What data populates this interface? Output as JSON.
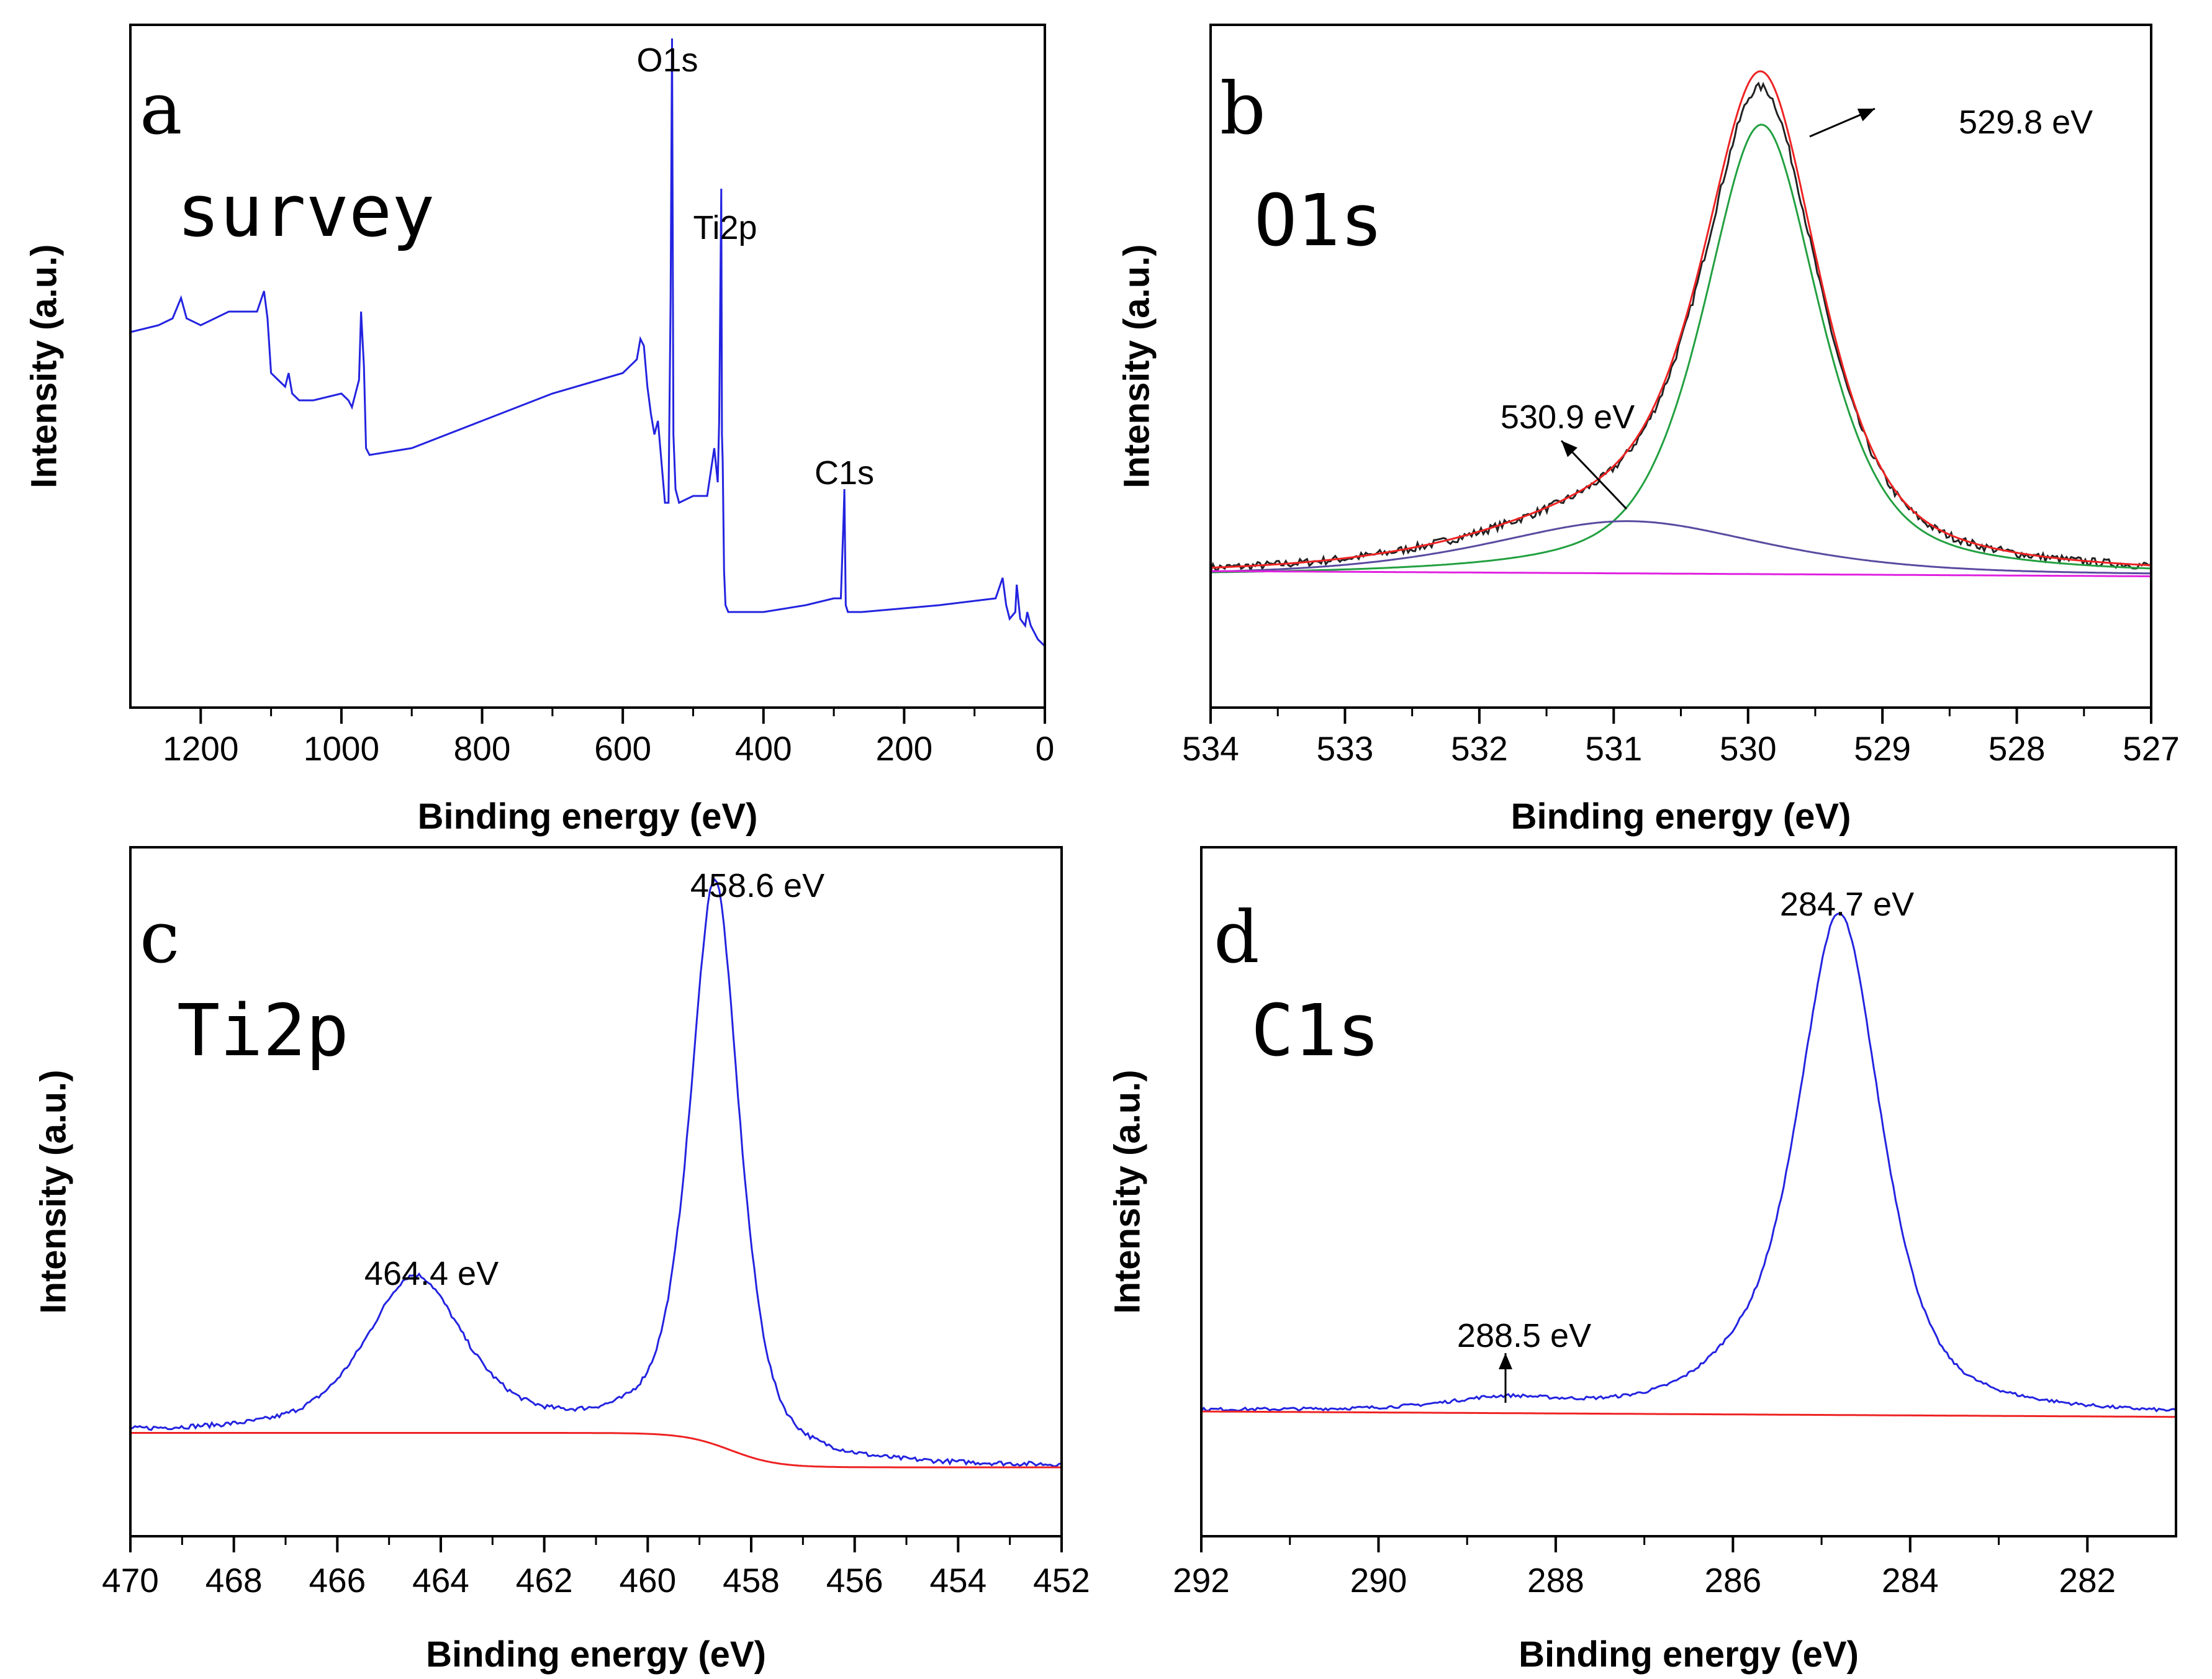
{
  "chart_data": [
    {
      "type": "line",
      "panel_label": "a",
      "panel_title": "survey",
      "xlabel": "Binding energy (eV)",
      "ylabel": "Intensity (a.u.)",
      "xlim": [
        1300,
        0
      ],
      "ylim": [
        0,
        100
      ],
      "xticks": [
        1200,
        1000,
        800,
        600,
        400,
        200,
        0
      ],
      "annotations": [
        {
          "text": "O1s",
          "x": 530,
          "y": 98
        },
        {
          "text": "Ti2p",
          "x": 458,
          "y": 74
        },
        {
          "text": "C1s",
          "x": 285,
          "y": 35
        }
      ],
      "series": [
        {
          "name": "survey",
          "color": "#2323e0",
          "x": [
            1300,
            1260,
            1240,
            1228,
            1220,
            1200,
            1160,
            1140,
            1120,
            1110,
            1105,
            1100,
            1090,
            1080,
            1075,
            1070,
            1060,
            1040,
            1000,
            990,
            985,
            975,
            972,
            968,
            965,
            960,
            900,
            800,
            700,
            600,
            580,
            575,
            570,
            565,
            560,
            555,
            550,
            540,
            535,
            532,
            530,
            528,
            525,
            520,
            500,
            480,
            470,
            465,
            463,
            460,
            459,
            458,
            456,
            454,
            450,
            420,
            400,
            340,
            300,
            290,
            286,
            285,
            283,
            280,
            260,
            150,
            70,
            60,
            55,
            50,
            42,
            40,
            35,
            28,
            25,
            20,
            10,
            0
          ],
          "y": [
            55,
            56,
            57,
            60,
            57,
            56,
            58,
            58,
            58,
            61,
            57,
            49,
            48,
            47,
            49,
            46,
            45,
            45,
            46,
            45,
            44,
            48,
            58,
            50,
            38,
            37,
            38,
            42,
            46,
            49,
            51,
            54,
            53,
            47,
            43,
            40,
            42,
            30,
            30,
            60,
            98,
            40,
            32,
            30,
            31,
            31,
            38,
            33,
            42,
            76,
            40,
            36,
            20,
            15,
            14,
            14,
            14,
            15,
            16,
            16,
            28,
            32,
            15,
            14,
            14,
            15,
            16,
            19,
            15,
            13,
            14,
            18,
            13,
            12,
            14,
            12,
            10,
            9
          ]
        }
      ]
    },
    {
      "type": "line",
      "panel_label": "b",
      "panel_title": "O1s",
      "xlabel": "Binding energy (eV)",
      "ylabel": "Intensity (a.u.)",
      "xlim": [
        534,
        527
      ],
      "ylim": [
        -0.25,
        1.05
      ],
      "xticks": [
        534,
        533,
        532,
        531,
        530,
        529,
        528,
        527
      ],
      "annotations": [
        {
          "text": "529.8 eV",
          "x": 529.3,
          "y": 0.98
        },
        {
          "text": "530.9 eV",
          "x": 531.4,
          "y": 0.38
        }
      ],
      "series": [
        {
          "name": "raw",
          "color": "#222222",
          "peaks": [
            {
              "center": 529.9,
              "height": 0.87,
              "width": 0.5
            },
            {
              "center": 530.9,
              "height": 0.1,
              "width": 1.2
            }
          ],
          "noise": 0.008
        },
        {
          "name": "envelope",
          "color": "#ee2222",
          "peaks": [
            {
              "center": 529.9,
              "height": 0.9,
              "width": 0.5
            },
            {
              "center": 530.9,
              "height": 0.1,
              "width": 1.2
            }
          ]
        },
        {
          "name": "529.8 eV component",
          "color": "#22a040",
          "peaks": [
            {
              "center": 529.9,
              "height": 0.86,
              "width": 0.5
            }
          ]
        },
        {
          "name": "530.9 eV component",
          "color": "#5a4aa0",
          "peaks": [
            {
              "center": 530.9,
              "height": 0.105,
              "width": 1.2
            }
          ]
        },
        {
          "name": "background",
          "color": "#e020e0",
          "background": {
            "from": 0.01,
            "to": 0.0
          }
        }
      ]
    },
    {
      "type": "line",
      "panel_label": "c",
      "panel_title": "Ti2p",
      "xlabel": "Binding energy (eV)",
      "ylabel": "Intensity (a.u.)",
      "xlim": [
        470,
        452
      ],
      "ylim": [
        -0.12,
        1.08
      ],
      "xticks": [
        470,
        468,
        466,
        464,
        462,
        460,
        458,
        456,
        454,
        452
      ],
      "annotations": [
        {
          "text": "464.4 eV",
          "x": 464.4,
          "y": 0.26
        },
        {
          "text": "458.6 eV",
          "x": 458.6,
          "y": 1.0
        }
      ],
      "series": [
        {
          "name": "spectrum",
          "color": "#2323e0",
          "peaks": [
            {
              "center": 458.7,
              "height": 0.98,
              "width": 0.55
            },
            {
              "center": 464.5,
              "height": 0.27,
              "width": 1.1
            }
          ],
          "background": {
            "from": 0.06,
            "to": 0.0,
            "step_center": 458.4
          },
          "noise": 0.004
        },
        {
          "name": "background",
          "color": "#ee2222",
          "background": {
            "from": 0.06,
            "to": 0.0,
            "step_center": 458.4
          }
        }
      ]
    },
    {
      "type": "line",
      "panel_label": "d",
      "panel_title": "C1s",
      "xlabel": "Binding energy (eV)",
      "ylabel": "Intensity (a.u.)",
      "xlim": [
        292,
        281
      ],
      "ylim": [
        -0.22,
        1.05
      ],
      "xticks": [
        292,
        290,
        288,
        286,
        284,
        282
      ],
      "annotations": [
        {
          "text": "284.7 eV",
          "x": 284.7,
          "y": 0.98
        },
        {
          "text": "288.5 eV",
          "x": 288.5,
          "y": 0.12
        }
      ],
      "series": [
        {
          "name": "spectrum",
          "color": "#2323e0",
          "peaks": [
            {
              "center": 284.8,
              "height": 0.92,
              "width": 0.55
            },
            {
              "center": 288.6,
              "height": 0.02,
              "width": 0.7
            },
            {
              "center": 286.0,
              "height": 0.04,
              "width": 0.5
            }
          ],
          "background": {
            "from": 0.01,
            "to": 0.0
          },
          "noise": 0.003
        },
        {
          "name": "background",
          "color": "#ee2222",
          "background": {
            "from": 0.01,
            "to": 0.0
          }
        }
      ]
    }
  ]
}
